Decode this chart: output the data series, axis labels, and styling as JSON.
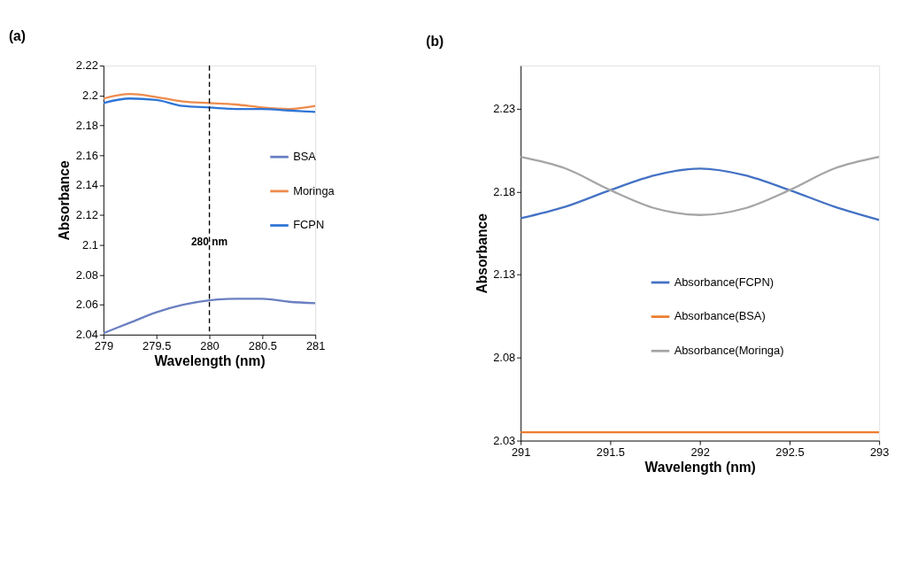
{
  "chart_data": [
    {
      "type": "line",
      "title": "(a)",
      "xlabel": "Wavelength (nm)",
      "ylabel": "Absorbance",
      "x": [
        279,
        279.25,
        279.5,
        279.75,
        280,
        280.25,
        280.5,
        280.75,
        281
      ],
      "series": [
        {
          "name": "BSA",
          "color": "#6a7fc0",
          "values": [
            2.041,
            2.048,
            2.055,
            2.06,
            2.063,
            2.064,
            2.064,
            2.062,
            2.061
          ]
        },
        {
          "name": "Moringa",
          "color": "#ed8b4c",
          "values": [
            2.198,
            2.201,
            2.199,
            2.196,
            2.195,
            2.194,
            2.192,
            2.191,
            2.193
          ]
        },
        {
          "name": "FCPN",
          "color": "#2e75d6",
          "values": [
            2.195,
            2.198,
            2.197,
            2.193,
            2.192,
            2.191,
            2.191,
            2.19,
            2.189
          ]
        }
      ],
      "xlim": [
        279,
        281
      ],
      "xticks": [
        279,
        279.5,
        280,
        280.5,
        281
      ],
      "ylim": [
        2.04,
        2.22
      ],
      "yticks": [
        2.04,
        2.06,
        2.08,
        2.1,
        2.12,
        2.14,
        2.16,
        2.18,
        2.2,
        2.22
      ],
      "ref_lines": [
        {
          "axis": "x",
          "value": 280,
          "label": "280 nm",
          "line_style": "dashed",
          "color": "#000000"
        }
      ],
      "legend": "right",
      "grid": false,
      "marker": "none",
      "line_style": "solid"
    },
    {
      "type": "line",
      "title": "(b)",
      "xlabel": "Wavelength (nm)",
      "ylabel": "Absorbance",
      "x": [
        291,
        291.25,
        291.5,
        291.75,
        292,
        292.25,
        292.5,
        292.75,
        293
      ],
      "series": [
        {
          "name": "Absorbance(FCPN)",
          "color": "#4472c4",
          "values": [
            2.164,
            2.171,
            2.181,
            2.19,
            2.194,
            2.19,
            2.181,
            2.171,
            2.163
          ]
        },
        {
          "name": "Absorbance(BSA)",
          "color": "#ed7d31",
          "values": [
            2.035,
            2.035,
            2.035,
            2.035,
            2.035,
            2.035,
            2.035,
            2.035,
            2.035
          ]
        },
        {
          "name": "Absorbance(Moringa)",
          "color": "#a5a5a5",
          "values": [
            2.201,
            2.194,
            2.181,
            2.17,
            2.166,
            2.17,
            2.181,
            2.194,
            2.201
          ]
        }
      ],
      "xlim": [
        291,
        293
      ],
      "xticks": [
        291,
        291.5,
        292,
        292.5,
        293
      ],
      "ylim": [
        2.03,
        2.256
      ],
      "yticks": [
        2.03,
        2.08,
        2.13,
        2.18,
        2.23
      ],
      "legend": "center",
      "grid": false,
      "marker": "none",
      "line_style": "solid"
    }
  ]
}
